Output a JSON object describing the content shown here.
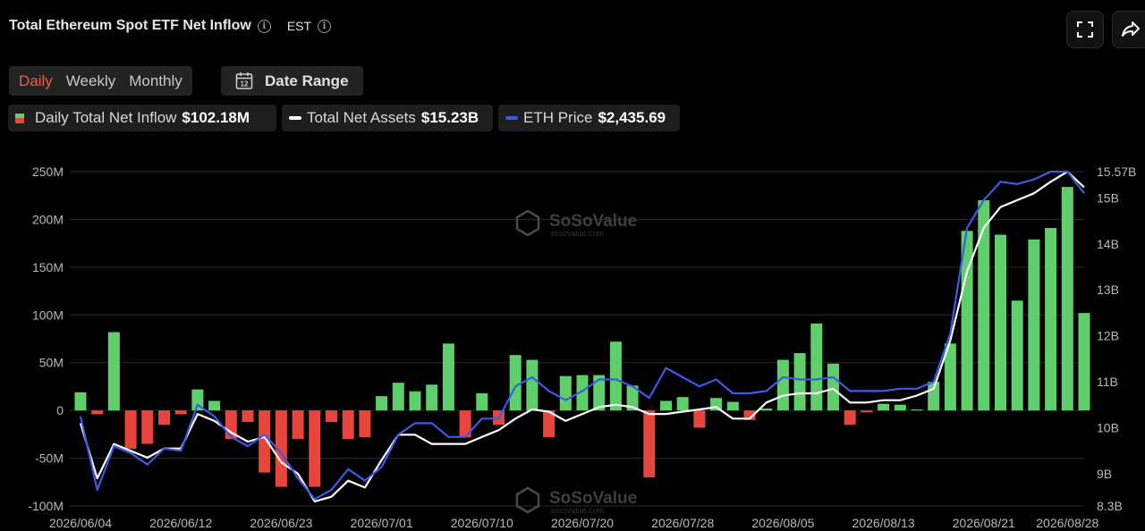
{
  "header": {
    "title": "Total Ethereum Spot ETF Net Inflow",
    "timezone": "EST"
  },
  "toggles": [
    {
      "label": "Daily",
      "active": true
    },
    {
      "label": "Weekly",
      "active": false
    },
    {
      "label": "Monthly",
      "active": false
    }
  ],
  "date_range": {
    "label": "Date Range",
    "icon_text": "12"
  },
  "legend": {
    "inflow": {
      "label": "Daily Total Net Inflow",
      "value": "$102.18M"
    },
    "assets": {
      "label": "Total Net Assets",
      "value": "$15.23B"
    },
    "price": {
      "label": "ETH Price",
      "value": "$2,435.69"
    }
  },
  "colors": {
    "positive": "#5fcf6b",
    "negative": "#e8463c",
    "assets_line": "#ffffff",
    "price_line": "#3a5be8",
    "accent": "#f15a4a"
  },
  "watermark": {
    "name": "SoSoValue",
    "url": "sosovalue.com"
  },
  "chart_data": {
    "type": "bar",
    "y_left": {
      "ticks": [
        "250M",
        "200M",
        "150M",
        "100M",
        "50M",
        "0",
        "-50M",
        "-100M"
      ],
      "tick_values": [
        250,
        200,
        150,
        100,
        50,
        0,
        -50,
        -100
      ],
      "range": [
        -100,
        250
      ]
    },
    "y_right": {
      "ticks": [
        "15.57B",
        "15B",
        "14B",
        "13B",
        "12B",
        "11B",
        "10B",
        "9B",
        "8.3B"
      ],
      "tick_values": [
        15.57,
        15,
        14,
        13,
        12,
        11,
        10,
        9,
        8.3
      ],
      "range": [
        8.3,
        15.57
      ]
    },
    "x_ticks": [
      {
        "label": "2026/06/04",
        "index": 0
      },
      {
        "label": "2026/06/12",
        "index": 6
      },
      {
        "label": "2026/06/23",
        "index": 12
      },
      {
        "label": "2026/07/01",
        "index": 18
      },
      {
        "label": "2026/07/10",
        "index": 24
      },
      {
        "label": "2026/07/20",
        "index": 30
      },
      {
        "label": "2026/07/28",
        "index": 36
      },
      {
        "label": "2026/08/05",
        "index": 42
      },
      {
        "label": "2026/08/13",
        "index": 48
      },
      {
        "label": "2026/08/21",
        "index": 54
      },
      {
        "label": "2026/08/28",
        "index": 59
      }
    ],
    "series": [
      {
        "name": "Daily Total Net Inflow",
        "axis": "left",
        "values": [
          19,
          -4,
          82,
          -40,
          -35,
          -15,
          -4,
          22,
          10,
          -30,
          -12,
          -65,
          -80,
          -30,
          -80,
          -12,
          -30,
          -28,
          15,
          29,
          20,
          27,
          70,
          -28,
          18,
          -15,
          58,
          53,
          -28,
          36,
          37,
          37,
          72,
          26,
          -70,
          10,
          14,
          -18,
          13,
          9,
          -10,
          2,
          53,
          60,
          91,
          49,
          -15,
          -2,
          7,
          6,
          1,
          30,
          70,
          188,
          220,
          184,
          115,
          179,
          191,
          234,
          102
        ]
      },
      {
        "name": "Total Net Assets",
        "axis": "right",
        "values": [
          10.1,
          8.9,
          9.65,
          9.5,
          9.35,
          9.55,
          9.55,
          10.3,
          10.15,
          9.9,
          9.7,
          9.8,
          9.25,
          9.0,
          8.4,
          8.5,
          8.85,
          8.7,
          9.3,
          9.85,
          9.85,
          9.65,
          9.65,
          9.65,
          9.8,
          9.95,
          10.2,
          10.4,
          10.35,
          10.15,
          10.3,
          10.45,
          10.5,
          10.45,
          10.3,
          10.3,
          10.35,
          10.4,
          10.45,
          10.2,
          10.2,
          10.55,
          10.7,
          10.75,
          10.75,
          10.85,
          10.55,
          10.55,
          10.6,
          10.6,
          10.7,
          10.85,
          11.9,
          13.4,
          14.35,
          14.8,
          14.95,
          15.1,
          15.35,
          15.57,
          15.23
        ]
      },
      {
        "name": "ETH Price",
        "axis": "right",
        "values": [
          10.25,
          8.65,
          9.6,
          9.45,
          9.2,
          9.55,
          9.5,
          10.5,
          10.25,
          9.8,
          9.6,
          9.85,
          9.45,
          8.9,
          8.45,
          8.65,
          9.1,
          8.85,
          9.15,
          9.85,
          10.1,
          10.1,
          9.8,
          9.8,
          10.2,
          10.2,
          10.9,
          11.1,
          10.8,
          10.6,
          10.8,
          11.05,
          11.05,
          10.9,
          10.65,
          11.3,
          11.1,
          10.9,
          11.05,
          10.75,
          10.75,
          10.8,
          11.1,
          11.05,
          11.05,
          11.1,
          10.8,
          10.8,
          10.8,
          10.85,
          10.85,
          11.0,
          12.05,
          14.35,
          14.95,
          15.35,
          15.3,
          15.4,
          15.57,
          15.57,
          15.1
        ]
      }
    ],
    "grid": "horizontal",
    "legend_position": "top-left"
  }
}
